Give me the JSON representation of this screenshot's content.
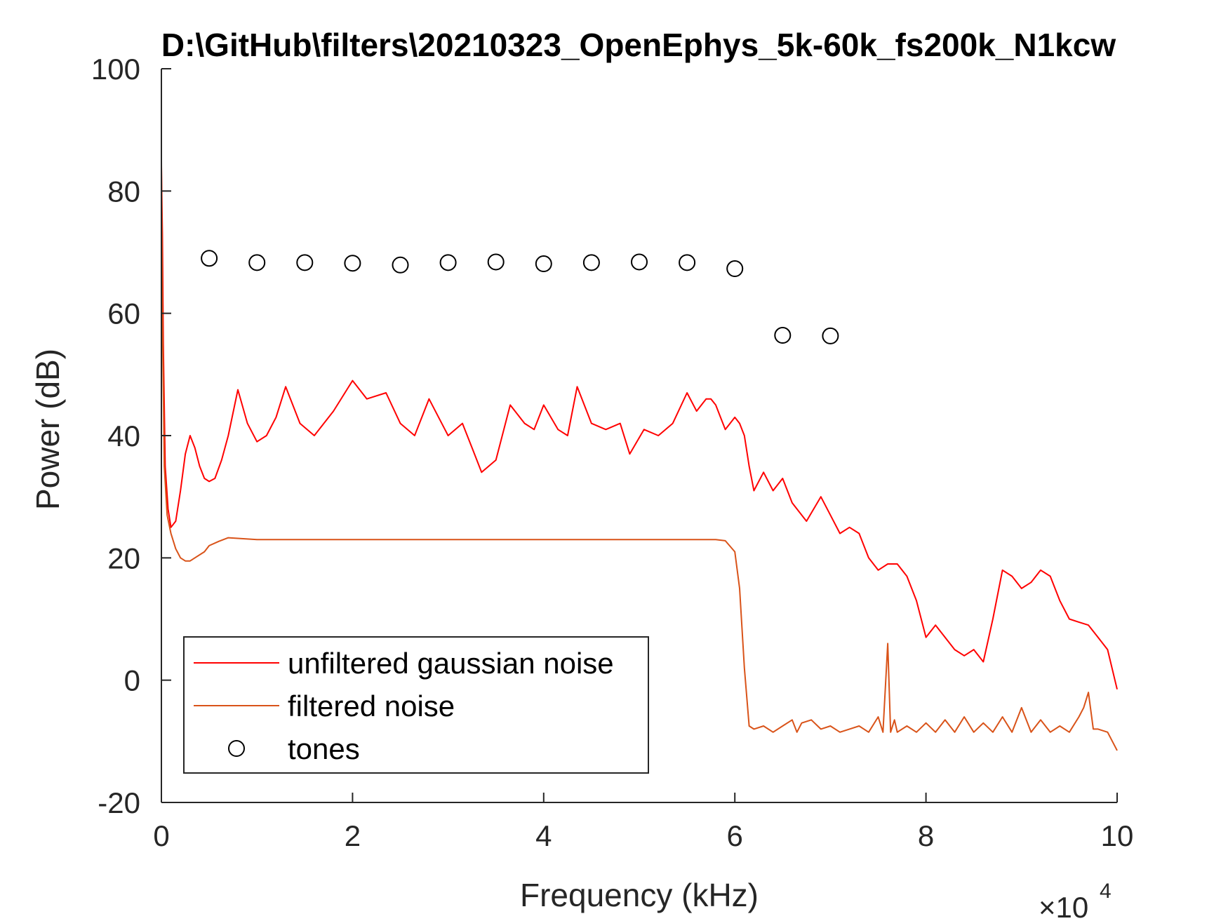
{
  "chart_data": {
    "type": "line",
    "title": "D:\\GitHub\\filters\\20210323_OpenEphys_5k-60k_fs200k_N1kcw",
    "xlabel": "Frequency (kHz)",
    "ylabel": "Power (dB)",
    "x_multiplier_label": "×10",
    "x_multiplier_exponent": "4",
    "xlim": [
      0,
      100000
    ],
    "ylim": [
      -20,
      100
    ],
    "xticks": [
      0,
      20000,
      40000,
      60000,
      80000,
      100000
    ],
    "xtick_labels": [
      "0",
      "2",
      "4",
      "6",
      "8",
      "10"
    ],
    "yticks": [
      -20,
      0,
      20,
      40,
      60,
      80,
      100
    ],
    "ytick_labels": [
      "-20",
      "0",
      "20",
      "40",
      "60",
      "80",
      "100"
    ],
    "grid": false,
    "legend_placement": "bottom-left",
    "series": [
      {
        "name": "unfiltered gaussian noise",
        "color": "#ff0000",
        "style": "line",
        "x": [
          0,
          100,
          200,
          400,
          700,
          1000,
          1500,
          2000,
          2500,
          3000,
          3500,
          4000,
          4500,
          5000,
          5600,
          6300,
          7000,
          8000,
          9000,
          10000,
          11000,
          12000,
          13000,
          14500,
          16000,
          18000,
          20000,
          21500,
          23500,
          25000,
          26500,
          28000,
          30000,
          31500,
          32500,
          33500,
          35000,
          36500,
          38000,
          39000,
          40000,
          41500,
          42500,
          43500,
          45000,
          46500,
          48000,
          49000,
          50500,
          52000,
          53500,
          55000,
          56000,
          57000,
          57500,
          58000,
          58500,
          59000,
          59500,
          60000,
          60500,
          61000,
          61500,
          62000,
          63000,
          64000,
          65000,
          66000,
          67500,
          69000,
          70000,
          71000,
          72000,
          73000,
          74000,
          75000,
          76000,
          77000,
          78000,
          79000,
          80000,
          81000,
          82000,
          83000,
          84000,
          85000,
          86000,
          87000,
          88000,
          89000,
          90000,
          91000,
          92000,
          93000,
          94000,
          95000,
          96000,
          97000,
          98000,
          99000,
          100000
        ],
        "y": [
          84,
          73,
          55,
          35,
          28,
          25,
          26,
          31,
          37,
          40,
          38,
          35,
          33,
          32.5,
          33,
          36,
          40,
          47.5,
          42,
          39,
          40,
          43,
          48,
          42,
          40,
          44,
          49,
          46,
          47,
          42,
          40,
          46,
          40,
          42,
          38,
          34,
          36,
          45,
          42,
          41,
          45,
          41,
          40,
          48,
          42,
          41,
          42,
          37,
          41,
          40,
          42,
          47,
          44,
          46,
          46,
          45,
          43,
          41,
          42,
          43,
          42,
          40,
          35,
          31,
          34,
          31,
          33,
          29,
          26,
          30,
          27,
          24,
          25,
          24,
          20,
          18,
          19,
          19,
          17,
          13,
          7,
          9,
          7,
          5,
          4,
          5,
          3,
          10,
          18,
          17,
          15,
          16,
          18,
          17,
          13,
          10,
          9.5,
          9,
          7,
          5,
          -1.5
        ]
      },
      {
        "name": "filtered noise",
        "color": "#d95319",
        "style": "line",
        "x": [
          0,
          100,
          300,
          600,
          1000,
          1500,
          2000,
          2500,
          3000,
          3500,
          4500,
          5000,
          6000,
          7000,
          10000,
          15000,
          20000,
          25000,
          30000,
          35000,
          40000,
          45000,
          50000,
          55000,
          58000,
          59000,
          60000,
          60500,
          61000,
          61500,
          62000,
          63000,
          64000,
          65000,
          66000,
          66500,
          67000,
          68000,
          69000,
          70000,
          71000,
          72000,
          73000,
          74000,
          75000,
          75500,
          76000,
          76300,
          76700,
          77000,
          78000,
          79000,
          80000,
          81000,
          82000,
          83000,
          84000,
          85000,
          86000,
          87000,
          88000,
          89000,
          90000,
          91000,
          92000,
          93000,
          94000,
          95000,
          96000,
          96500,
          97000,
          97500,
          98000,
          99000,
          100000
        ],
        "y": [
          85,
          60,
          35,
          27,
          24,
          21.5,
          20,
          19.5,
          19.5,
          20,
          21,
          22,
          22.7,
          23.3,
          23,
          23,
          23,
          23,
          23,
          23,
          23,
          23,
          23,
          23,
          23,
          22.8,
          21,
          15,
          2,
          -7.5,
          -8,
          -7.5,
          -8.5,
          -7.5,
          -6.5,
          -8.5,
          -7,
          -6.5,
          -8,
          -7.5,
          -8.5,
          -8,
          -7.5,
          -8.5,
          -6,
          -8.5,
          6,
          -8.5,
          -6.5,
          -8.5,
          -7.5,
          -8.5,
          -7,
          -8.5,
          -6.5,
          -8.5,
          -6,
          -8.5,
          -7,
          -8.5,
          -6,
          -8.5,
          -4.5,
          -8.5,
          -6.5,
          -8.5,
          -7.5,
          -8.5,
          -6,
          -4.5,
          -2,
          -8,
          -8,
          -8.5,
          -11.5
        ]
      },
      {
        "name": "tones",
        "color": "#000000",
        "style": "markers-open-circle",
        "x": [
          5000,
          10000,
          15000,
          20000,
          25000,
          30000,
          35000,
          40000,
          45000,
          50000,
          55000,
          60000,
          65000,
          70000
        ],
        "y": [
          69,
          68.3,
          68.3,
          68.2,
          67.9,
          68.3,
          68.4,
          68.1,
          68.3,
          68.4,
          68.3,
          67.3,
          56.4,
          56.3
        ]
      }
    ]
  }
}
